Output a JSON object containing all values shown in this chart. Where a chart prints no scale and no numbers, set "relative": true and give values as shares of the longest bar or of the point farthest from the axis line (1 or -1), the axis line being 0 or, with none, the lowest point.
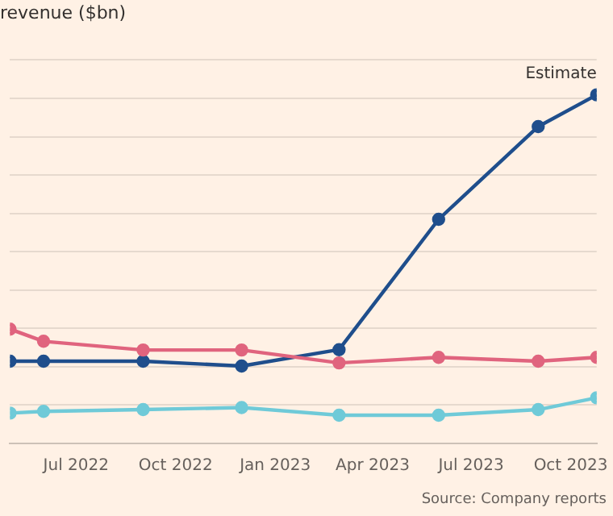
{
  "chart_data": {
    "type": "line",
    "title": "revenue ($bn)",
    "relative": true,
    "x": [
      "2022-05-01",
      "2022-06",
      "2022-09",
      "2022-12",
      "2023-03",
      "2023-06",
      "2023-09",
      "2023-10-25"
    ],
    "series": [
      {
        "color": "#e0647e",
        "values": [
          0.328,
          0.293,
          0.268,
          0.268,
          0.231,
          0.247,
          0.236,
          0.247
        ]
      },
      {
        "color": "#6fcad8",
        "values": [
          0.087,
          0.092,
          0.097,
          0.103,
          0.081,
          0.081,
          0.097,
          0.131
        ]
      },
      {
        "color": "#1f4e8c",
        "values": [
          0.236,
          0.236,
          0.236,
          0.222,
          0.269,
          0.643,
          0.909,
          1
        ]
      }
    ],
    "xlim": [
      "2022-05-01",
      "2023-10-25"
    ],
    "xticks": [
      {
        "value": "2022-07",
        "label": "Jul 2022"
      },
      {
        "value": "2022-10",
        "label": "Oct 2022"
      },
      {
        "value": "2023-01",
        "label": "Jan 2023"
      },
      {
        "value": "2023-04",
        "label": "Apr 2023"
      },
      {
        "value": "2023-07",
        "label": "Jul 2023"
      },
      {
        "value": "2023-10",
        "label": "Oct 2023"
      }
    ],
    "grid": "y",
    "marker": "circle",
    "line_style": "solid",
    "legend": false,
    "annotations": [
      {
        "text": "Estimate",
        "x": "2023-10-25",
        "y": 1
      },
      "Source: Company reports"
    ]
  }
}
